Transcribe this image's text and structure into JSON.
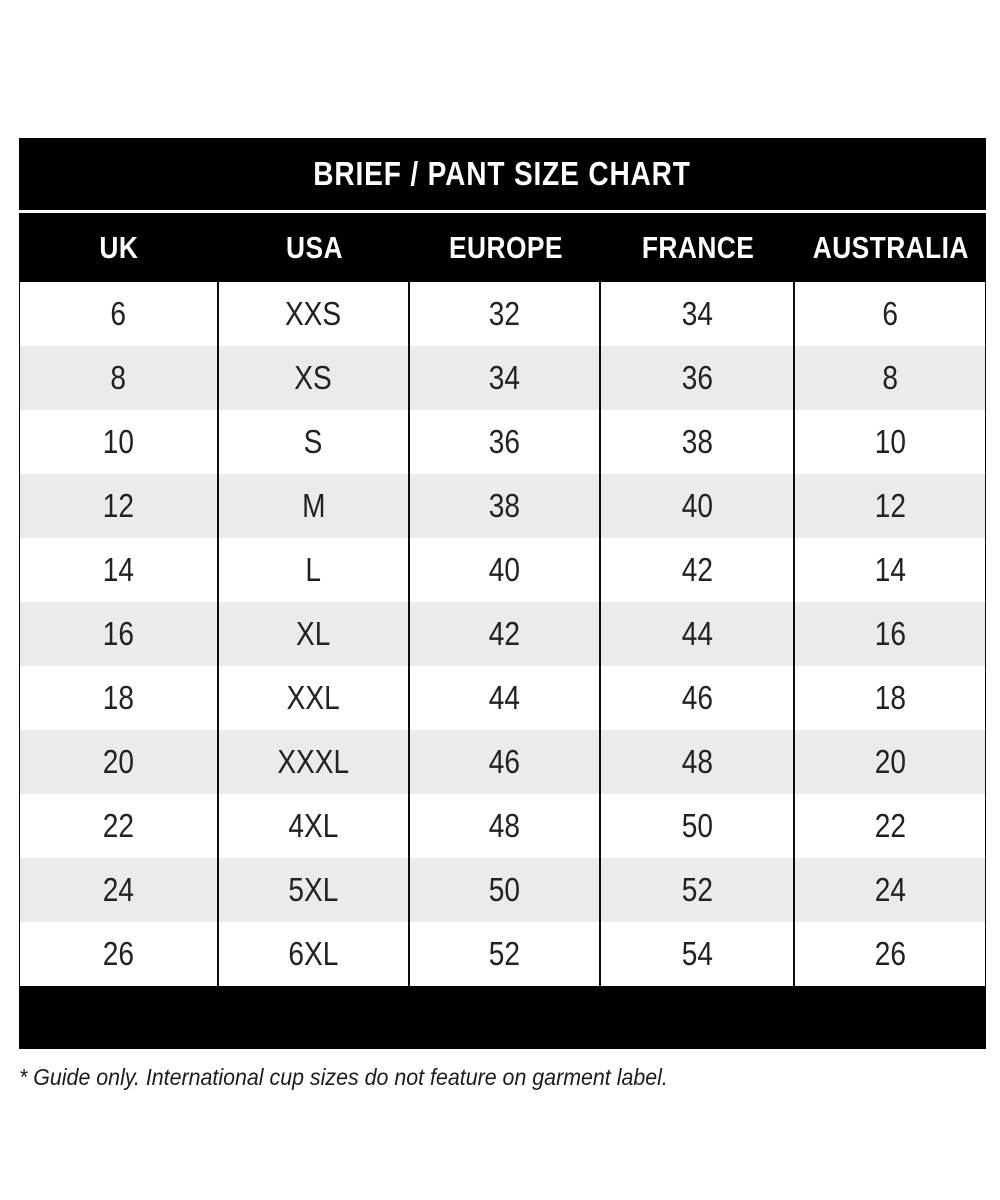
{
  "chart_data": {
    "type": "table",
    "title": "BRIEF / PANT SIZE CHART",
    "columns": [
      "UK",
      "USA",
      "EUROPE",
      "FRANCE",
      "AUSTRALIA"
    ],
    "rows": [
      [
        "6",
        "XXS",
        "32",
        "34",
        "6"
      ],
      [
        "8",
        "XS",
        "34",
        "36",
        "8"
      ],
      [
        "10",
        "S",
        "36",
        "38",
        "10"
      ],
      [
        "12",
        "M",
        "38",
        "40",
        "12"
      ],
      [
        "14",
        "L",
        "40",
        "42",
        "14"
      ],
      [
        "16",
        "XL",
        "42",
        "44",
        "16"
      ],
      [
        "18",
        "XXL",
        "44",
        "46",
        "18"
      ],
      [
        "20",
        "XXXL",
        "46",
        "48",
        "20"
      ],
      [
        "22",
        "4XL",
        "48",
        "50",
        "22"
      ],
      [
        "24",
        "5XL",
        "50",
        "52",
        "24"
      ],
      [
        "26",
        "6XL",
        "52",
        "54",
        "26"
      ]
    ],
    "footnote": "* Guide only. International cup sizes do not feature on garment label.",
    "layout_hints": {
      "row_striping": "alternating white and light gray",
      "grid": "vertical column separators only"
    }
  },
  "colors": {
    "bar_bg": "#000000",
    "bar_text": "#ffffff",
    "row_alt_bg": "#ebebeb",
    "body_text": "#222222",
    "separator": "#0d0d0d"
  }
}
